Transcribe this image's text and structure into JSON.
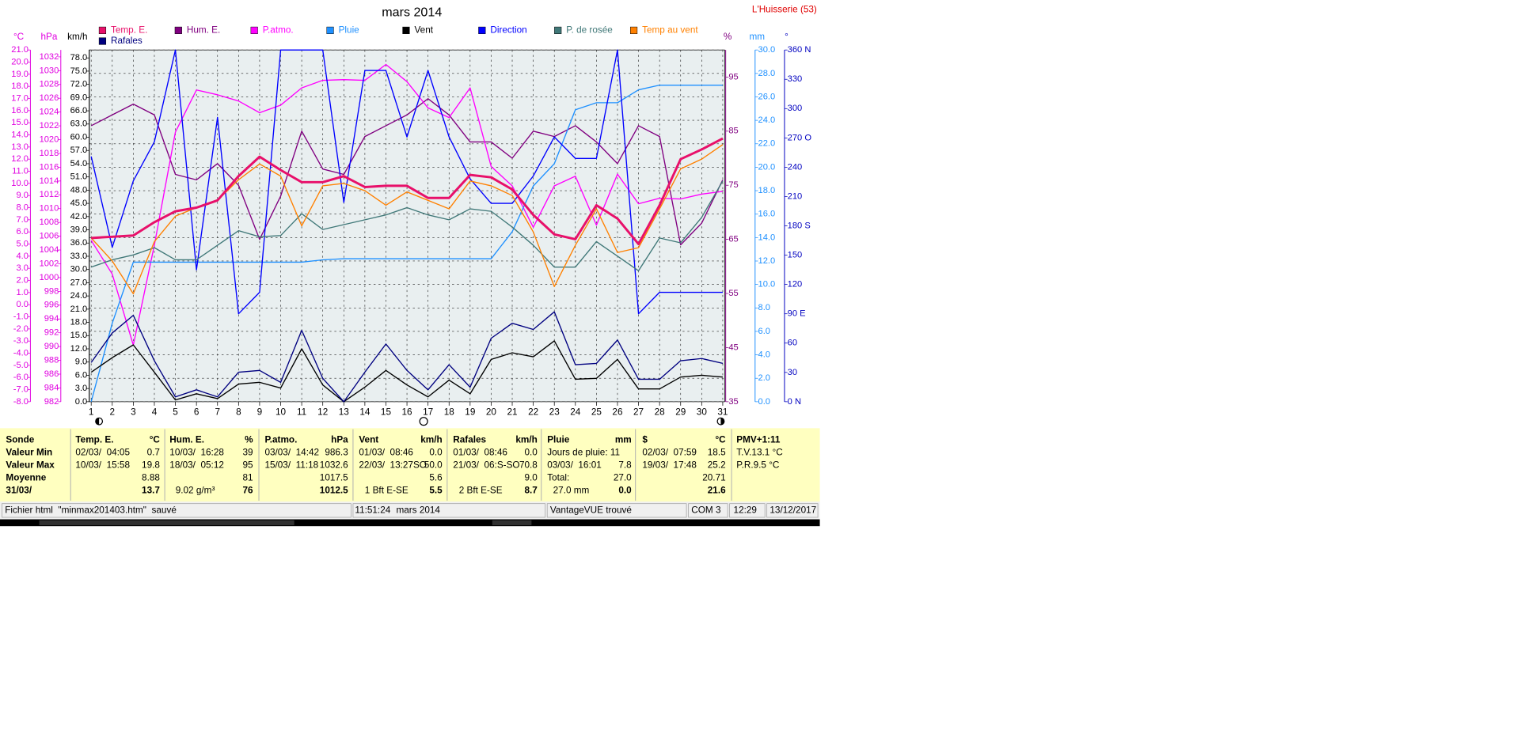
{
  "chart_data": {
    "type": "line",
    "title": "mars 2014",
    "station": "L'Huisserie (53)",
    "x": [
      1,
      2,
      3,
      4,
      5,
      6,
      7,
      8,
      9,
      10,
      11,
      12,
      13,
      14,
      15,
      16,
      17,
      18,
      19,
      20,
      21,
      22,
      23,
      24,
      25,
      26,
      27,
      28,
      29,
      30,
      31
    ],
    "xlim": [
      1,
      31
    ],
    "xticks": [
      1,
      2,
      3,
      4,
      5,
      6,
      7,
      8,
      9,
      10,
      11,
      12,
      13,
      14,
      15,
      16,
      17,
      18,
      19,
      20,
      21,
      22,
      23,
      24,
      25,
      26,
      27,
      28,
      29,
      30,
      31
    ],
    "axes": [
      {
        "title": "°C",
        "side": "left",
        "color": "#e000e0",
        "lim": [
          -8,
          21
        ],
        "ticks": [
          {
            "value": -8,
            "label": "-8.0"
          },
          {
            "value": -7,
            "label": "-7.0"
          },
          {
            "value": -6,
            "label": "-6.0"
          },
          {
            "value": -5,
            "label": "-5.0"
          },
          {
            "value": -4,
            "label": "-4.0"
          },
          {
            "value": -3,
            "label": "-3.0"
          },
          {
            "value": -2,
            "label": "-2.0"
          },
          {
            "value": -1,
            "label": "-1.0"
          },
          {
            "value": 0,
            "label": "0.0"
          },
          {
            "value": 1,
            "label": "1.0"
          },
          {
            "value": 2,
            "label": "2.0"
          },
          {
            "value": 3,
            "label": "3.0"
          },
          {
            "value": 4,
            "label": "4.0"
          },
          {
            "value": 5,
            "label": "5.0"
          },
          {
            "value": 6,
            "label": "6.0"
          },
          {
            "value": 7,
            "label": "7.0"
          },
          {
            "value": 8,
            "label": "8.0"
          },
          {
            "value": 9,
            "label": "9.0"
          },
          {
            "value": 10,
            "label": "10.0"
          },
          {
            "value": 11,
            "label": "11.0"
          },
          {
            "value": 12,
            "label": "12.0"
          },
          {
            "value": 13,
            "label": "13.0"
          },
          {
            "value": 14,
            "label": "14.0"
          },
          {
            "value": 15,
            "label": "15.0"
          },
          {
            "value": 16,
            "label": "16.0"
          },
          {
            "value": 17,
            "label": "17.0"
          },
          {
            "value": 18,
            "label": "18.0"
          },
          {
            "value": 19,
            "label": "19.0"
          },
          {
            "value": 20,
            "label": "20.0"
          },
          {
            "value": 21,
            "label": "21.0"
          }
        ]
      },
      {
        "title": "hPa",
        "side": "left",
        "color": "#e000e0",
        "lim": [
          982,
          1033
        ],
        "ticks": [
          982,
          984,
          986,
          988,
          990,
          992,
          994,
          996,
          998,
          1000,
          1002,
          1004,
          1006,
          1008,
          1010,
          1012,
          1014,
          1016,
          1018,
          1020,
          1022,
          1024,
          1026,
          1028,
          1030,
          1032
        ]
      },
      {
        "title": "km/h",
        "side": "left",
        "color": "#000000",
        "lim": [
          0,
          79.8
        ],
        "ticks": [
          {
            "value": 0,
            "label": "0.0"
          },
          {
            "value": 3,
            "label": "3.0"
          },
          {
            "value": 6,
            "label": "6.0"
          },
          {
            "value": 9,
            "label": "9.0"
          },
          {
            "value": 12,
            "label": "12.0"
          },
          {
            "value": 15,
            "label": "15.0"
          },
          {
            "value": 18,
            "label": "18.0"
          },
          {
            "value": 21,
            "label": "21.0"
          },
          {
            "value": 24,
            "label": "24.0"
          },
          {
            "value": 27,
            "label": "27.0"
          },
          {
            "value": 30,
            "label": "30.0"
          },
          {
            "value": 33,
            "label": "33.0"
          },
          {
            "value": 36,
            "label": "36.0"
          },
          {
            "value": 39,
            "label": "39.0"
          },
          {
            "value": 42,
            "label": "42.0"
          },
          {
            "value": 45,
            "label": "45.0"
          },
          {
            "value": 48,
            "label": "48.0"
          },
          {
            "value": 51,
            "label": "51.0"
          },
          {
            "value": 54,
            "label": "54.0"
          },
          {
            "value": 57,
            "label": "57.0"
          },
          {
            "value": 60,
            "label": "60.0"
          },
          {
            "value": 63,
            "label": "63.0"
          },
          {
            "value": 66,
            "label": "66.0"
          },
          {
            "value": 69,
            "label": "69.0"
          },
          {
            "value": 72,
            "label": "72.0"
          },
          {
            "value": 75,
            "label": "75.0"
          },
          {
            "value": 78,
            "label": "78.0"
          }
        ]
      },
      {
        "title": "%",
        "side": "right",
        "color": "#800080",
        "lim": [
          35,
          100
        ],
        "ticks": [
          35,
          45,
          55,
          65,
          75,
          85,
          95
        ]
      },
      {
        "title": "mm",
        "side": "right",
        "color": "#1e90ff",
        "lim": [
          0,
          30
        ],
        "grid": true,
        "ticks": [
          {
            "value": 0,
            "label": "0.0"
          },
          {
            "value": 2,
            "label": "2.0"
          },
          {
            "value": 4,
            "label": "4.0"
          },
          {
            "value": 6,
            "label": "6.0"
          },
          {
            "value": 8,
            "label": "8.0"
          },
          {
            "value": 10,
            "label": "10.0"
          },
          {
            "value": 12,
            "label": "12.0"
          },
          {
            "value": 14,
            "label": "14.0"
          },
          {
            "value": 16,
            "label": "16.0"
          },
          {
            "value": 18,
            "label": "18.0"
          },
          {
            "value": 20,
            "label": "20.0"
          },
          {
            "value": 22,
            "label": "22.0"
          },
          {
            "value": 24,
            "label": "24.0"
          },
          {
            "value": 26,
            "label": "26.0"
          },
          {
            "value": 28,
            "label": "28.0"
          },
          {
            "value": 30,
            "label": "30.0"
          }
        ]
      },
      {
        "title": "°",
        "side": "right",
        "color": "#0000c0",
        "lim": [
          0,
          360
        ],
        "ticks": [
          {
            "value": 0,
            "label": "0 N"
          },
          30,
          60,
          {
            "value": 90,
            "label": "90 E"
          },
          120,
          150,
          {
            "value": 180,
            "label": "180 S"
          },
          210,
          240,
          {
            "value": 270,
            "label": "270 O"
          },
          300,
          330,
          {
            "value": 360,
            "label": "360 N"
          }
        ]
      }
    ],
    "series": [
      {
        "name": "Temp. E.",
        "color": "#e8106a",
        "axis": 0,
        "line_width": 2.4,
        "values": [
          5.5,
          5.6,
          5.7,
          6.8,
          7.7,
          8.0,
          8.6,
          10.6,
          12.2,
          11.1,
          10.1,
          10.1,
          10.6,
          9.7,
          9.8,
          9.8,
          8.8,
          8.8,
          10.7,
          10.5,
          9.5,
          7.4,
          5.8,
          5.4,
          8.2,
          7.1,
          5.0,
          8.2,
          12.0,
          12.8,
          13.7
        ]
      },
      {
        "name": "Hum. E.",
        "color": "#800080",
        "axis": 3,
        "values": [
          86,
          88,
          90,
          88,
          77,
          76,
          79,
          75,
          65,
          73,
          85,
          78,
          77,
          84,
          86,
          88,
          91,
          88,
          83,
          83,
          80,
          85,
          84,
          86,
          83,
          79,
          86,
          84,
          64,
          68,
          76
        ]
      },
      {
        "name": "P.atmo.",
        "color": "#ff00ff",
        "axis": 1,
        "values": [
          1005.4,
          1000.5,
          990.2,
          1004.7,
          1021.1,
          1027.2,
          1026.5,
          1025.6,
          1023.9,
          1025.0,
          1027.5,
          1028.6,
          1028.7,
          1028.6,
          1030.9,
          1028.4,
          1024.6,
          1023.2,
          1027.5,
          1016.1,
          1013.3,
          1007.3,
          1013.3,
          1014.7,
          1007.6,
          1015.0,
          1010.7,
          1011.5,
          1011.4,
          1012.1,
          1012.5
        ]
      },
      {
        "name": "Pluie",
        "color": "#1e90ff",
        "axis": 4,
        "values": [
          0.0,
          6.7,
          11.9,
          11.9,
          11.9,
          11.9,
          11.9,
          11.9,
          11.9,
          11.9,
          11.9,
          12.1,
          12.2,
          12.2,
          12.2,
          12.2,
          12.2,
          12.2,
          12.2,
          12.2,
          14.5,
          18.4,
          20.3,
          24.9,
          25.5,
          25.5,
          26.6,
          27.0,
          27.0,
          27.0,
          27.0
        ]
      },
      {
        "name": "Vent",
        "color": "#000000",
        "axis": 2,
        "values": [
          6.7,
          10.0,
          12.9,
          6.7,
          0.4,
          1.8,
          0.7,
          4.0,
          4.4,
          3.1,
          12.0,
          3.8,
          0.0,
          3.3,
          7.1,
          3.8,
          1.1,
          4.9,
          1.8,
          9.6,
          11.1,
          10.2,
          13.8,
          5.1,
          5.3,
          9.6,
          2.9,
          2.9,
          5.6,
          6.0,
          5.6
        ]
      },
      {
        "name": "Direction",
        "color": "#0000ff",
        "axis": 5,
        "values": [
          251,
          158,
          226,
          266,
          360,
          135,
          291,
          90,
          112,
          360,
          360,
          360,
          204,
          339,
          339,
          271,
          339,
          271,
          228,
          203,
          203,
          231,
          271,
          249,
          249,
          360,
          90,
          112,
          112,
          112,
          112
        ]
      },
      {
        "name": "P. de rosée",
        "color": "#407878",
        "axis": 0,
        "values": [
          3.1,
          3.7,
          4.1,
          4.7,
          3.7,
          3.7,
          4.9,
          6.1,
          5.6,
          5.7,
          7.5,
          6.2,
          6.6,
          7.0,
          7.4,
          8.0,
          7.4,
          7.0,
          7.9,
          7.7,
          6.4,
          4.9,
          3.1,
          3.1,
          5.2,
          4.0,
          2.8,
          5.5,
          5.1,
          7.2,
          10.2
        ]
      },
      {
        "name": "Temp au vent",
        "color": "#ff8000",
        "axis": 0,
        "values": [
          5.5,
          3.6,
          0.9,
          5.2,
          7.3,
          8.0,
          8.6,
          10.3,
          11.6,
          10.6,
          6.5,
          9.8,
          10.0,
          9.4,
          8.2,
          9.3,
          8.6,
          7.9,
          10.2,
          9.8,
          9.0,
          6.0,
          1.5,
          4.9,
          7.9,
          4.3,
          4.7,
          7.9,
          11.2,
          12.0,
          13.2
        ]
      },
      {
        "name": "Rafales",
        "color": "#000080",
        "axis": 2,
        "values": [
          8.9,
          15.6,
          19.6,
          9.3,
          1.1,
          2.7,
          1.1,
          6.7,
          7.1,
          4.4,
          16.2,
          5.3,
          0.0,
          6.7,
          13.1,
          7.1,
          2.7,
          8.4,
          3.3,
          14.4,
          17.8,
          16.4,
          20.4,
          8.4,
          8.7,
          14.0,
          5.1,
          5.1,
          9.3,
          9.8,
          8.7
        ]
      }
    ]
  },
  "stats": {
    "row_labels": [
      "Sonde",
      "Valeur Min",
      "Valeur Max",
      "Moyenne",
      "31/03/"
    ],
    "blocks": [
      {
        "name": "Temp. E.",
        "unit": "°C",
        "rows": [
          [
            "02/03/  04:05",
            "0.7"
          ],
          [
            "10/03/  15:58",
            "19.8"
          ],
          [
            null,
            "8.88"
          ],
          [
            null,
            "13.7"
          ]
        ]
      },
      {
        "name": "Hum. E.",
        "unit": "%",
        "rows": [
          [
            "10/03/  16:28",
            "39"
          ],
          [
            "18/03/  05:12",
            "95"
          ],
          [
            null,
            "81"
          ],
          [
            "9.02 g/m³",
            "76"
          ]
        ]
      },
      {
        "name": "P.atmo.",
        "unit": "hPa",
        "rows": [
          [
            "03/03/  14:42",
            "986.3"
          ],
          [
            "15/03/  11:18",
            "1032.6"
          ],
          [
            null,
            "1017.5"
          ],
          [
            null,
            "1012.5"
          ]
        ]
      },
      {
        "name": "Vent",
        "unit": "km/h",
        "rows": [
          [
            "01/03/  08:46",
            "0.0"
          ],
          [
            "22/03/  13:27SO",
            "50.0"
          ],
          [
            null,
            "5.6"
          ],
          [
            "1 Bft E-SE",
            "5.5"
          ]
        ]
      },
      {
        "name": "Rafales",
        "unit": "km/h",
        "rows": [
          [
            "01/03/  08:46",
            "0.0"
          ],
          [
            "21/03/  06:S-SO",
            "70.8"
          ],
          [
            null,
            "9.0"
          ],
          [
            "2 Bft E-SE",
            "8.7"
          ]
        ]
      },
      {
        "name": "Pluie",
        "unit": "mm",
        "rows": [
          [
            "Jours de pluie: 11",
            null
          ],
          [
            "03/03/  16:01",
            "7.8"
          ],
          [
            "Total:",
            "27.0"
          ],
          [
            "27.0 mm",
            "0.0"
          ]
        ]
      },
      {
        "name": "$",
        "unit": "°C",
        "rows": [
          [
            "02/03/  07:59",
            "18.5"
          ],
          [
            "19/03/  17:48",
            "25.2"
          ],
          [
            null,
            "20.71"
          ],
          [
            null,
            "21.6"
          ]
        ]
      }
    ],
    "extra": {
      "name": "PMV+1:11",
      "lines": [
        "T.V.13.1 °C",
        "P.R.9.5 °C"
      ]
    }
  },
  "status_bar": [
    "Fichier html  \"minmax201403.htm\"  sauvé",
    "11:51:24",
    "mars 2014",
    "VantageVUE trouvé",
    "COM 3",
    "12:29",
    "13/12/2017"
  ]
}
